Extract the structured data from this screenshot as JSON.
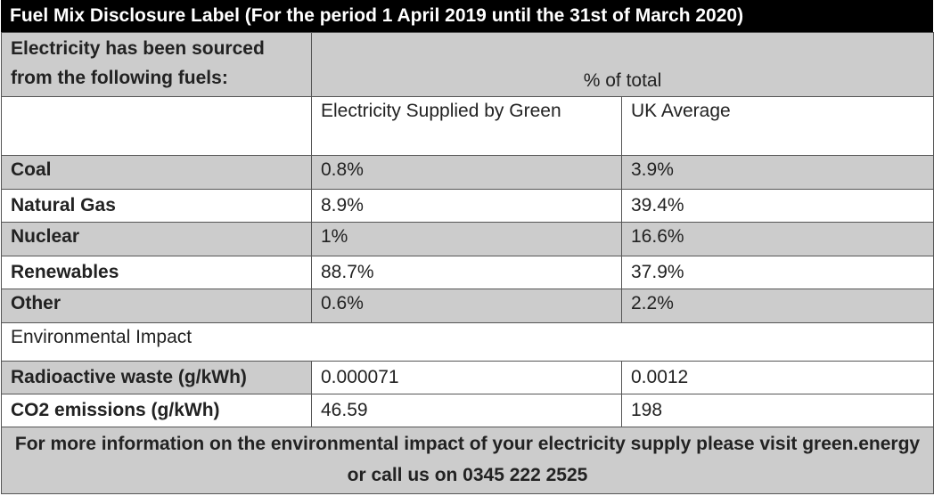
{
  "title": "Fuel Mix Disclosure Label (For the period 1 April 2019 until the 31st of March 2020)",
  "header": {
    "sourced_label": "Electricity has been sourced from the following fuels:",
    "percent_label": "% of total"
  },
  "columns": {
    "supplier": "Electricity Supplied by Green",
    "uk": "UK Average"
  },
  "fuel_rows": [
    {
      "fuel": "Coal",
      "supplier": "0.8%",
      "uk": "3.9%"
    },
    {
      "fuel": "Natural Gas",
      "supplier": "8.9%",
      "uk": "39.4%"
    },
    {
      "fuel": "Nuclear",
      "supplier": "1%",
      "uk": "16.6%"
    },
    {
      "fuel": "Renewables",
      "supplier": "88.7%",
      "uk": "37.9%"
    },
    {
      "fuel": "Other",
      "supplier": "0.6%",
      "uk": "2.2%"
    }
  ],
  "environmental_heading": "Environmental Impact",
  "impact_rows": [
    {
      "metric": "Radioactive waste (g/kWh)",
      "supplier": "0.000071",
      "uk": "0.0012"
    },
    {
      "metric": "CO2 emissions (g/kWh)",
      "supplier": "46.59",
      "uk": "198"
    }
  ],
  "footer": "For more information on the environmental impact of your electricity supply please visit green.energy or call us on 0345 222 2525",
  "colors": {
    "title_bg": "#000000",
    "label_bg": "#cccccc",
    "border": "#555555"
  }
}
